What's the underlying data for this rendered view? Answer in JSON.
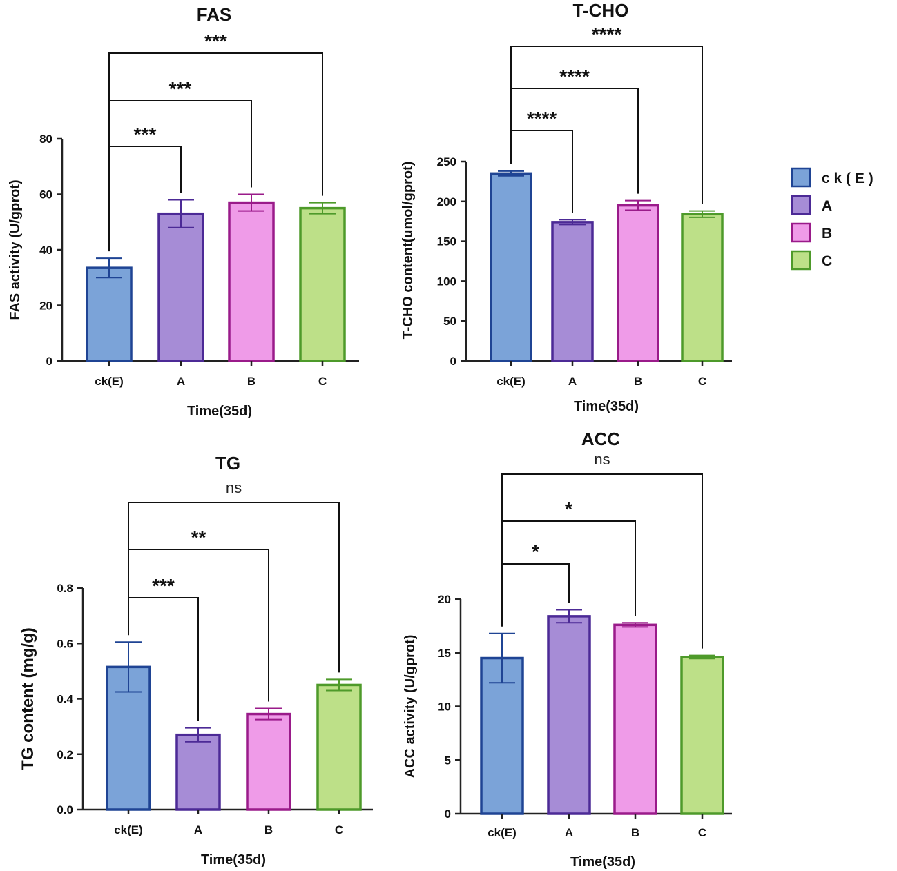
{
  "legend": {
    "position": "right",
    "items": [
      {
        "label": "c k ( E )",
        "fill": "#7ba3d8",
        "stroke": "#1f4494"
      },
      {
        "label": "A",
        "fill": "#a68cd6",
        "stroke": "#4c2a96"
      },
      {
        "label": "B",
        "fill": "#ef9be8",
        "stroke": "#9a1b8a"
      },
      {
        "label": "C",
        "fill": "#bde088",
        "stroke": "#4e9a2a"
      }
    ]
  },
  "chart_data": [
    {
      "type": "bar",
      "title": "FAS",
      "xlabel": "Time(35d)",
      "ylabel": "FAS activity (U/gprot)",
      "categories": [
        "ck(E)",
        "A",
        "B",
        "C"
      ],
      "values": [
        33.5,
        53.0,
        57.0,
        55.0
      ],
      "errors": [
        3.5,
        5.0,
        3.0,
        2.0
      ],
      "ylim": [
        0,
        80
      ],
      "yticks": [
        "0",
        "20",
        "40",
        "60",
        "80"
      ],
      "comparisons": [
        {
          "from": "ck(E)",
          "to": "A",
          "label": "***"
        },
        {
          "from": "ck(E)",
          "to": "B",
          "label": "***"
        },
        {
          "from": "ck(E)",
          "to": "C",
          "label": "***"
        }
      ]
    },
    {
      "type": "bar",
      "title": "T-CHO",
      "xlabel": "Time(35d)",
      "ylabel": "T-CHO content(umol/gprot)",
      "categories": [
        "ck(E)",
        "A",
        "B",
        "C"
      ],
      "values": [
        235,
        174,
        195,
        184
      ],
      "errors": [
        3,
        3,
        6,
        4
      ],
      "ylim": [
        0,
        250
      ],
      "yticks": [
        "0",
        "50",
        "100",
        "150",
        "200",
        "250"
      ],
      "comparisons": [
        {
          "from": "ck(E)",
          "to": "A",
          "label": "****"
        },
        {
          "from": "ck(E)",
          "to": "B",
          "label": "****"
        },
        {
          "from": "ck(E)",
          "to": "C",
          "label": "****"
        }
      ]
    },
    {
      "type": "bar",
      "title": "TG",
      "xlabel": "Time(35d)",
      "ylabel": "TG content (mg/g)",
      "categories": [
        "ck(E)",
        "A",
        "B",
        "C"
      ],
      "values": [
        0.515,
        0.27,
        0.345,
        0.45
      ],
      "errors": [
        0.09,
        0.025,
        0.02,
        0.02
      ],
      "ylim": [
        0,
        0.8
      ],
      "yticks": [
        "0.0",
        "0.2",
        "0.4",
        "0.6",
        "0.8"
      ],
      "comparisons": [
        {
          "from": "ck(E)",
          "to": "A",
          "label": "***"
        },
        {
          "from": "ck(E)",
          "to": "B",
          "label": "**"
        },
        {
          "from": "ck(E)",
          "to": "C",
          "label": "ns"
        }
      ]
    },
    {
      "type": "bar",
      "title": "ACC",
      "xlabel": "Time(35d)",
      "ylabel": "ACC activity (U/gprot)",
      "categories": [
        "ck(E)",
        "A",
        "B",
        "C"
      ],
      "values": [
        14.5,
        18.4,
        17.6,
        14.6
      ],
      "errors": [
        2.3,
        0.6,
        0.2,
        0.15
      ],
      "ylim": [
        0,
        20
      ],
      "yticks": [
        "0",
        "5",
        "10",
        "15",
        "20"
      ],
      "comparisons": [
        {
          "from": "ck(E)",
          "to": "A",
          "label": "*"
        },
        {
          "from": "ck(E)",
          "to": "B",
          "label": "*"
        },
        {
          "from": "ck(E)",
          "to": "C",
          "label": "ns"
        }
      ]
    }
  ]
}
